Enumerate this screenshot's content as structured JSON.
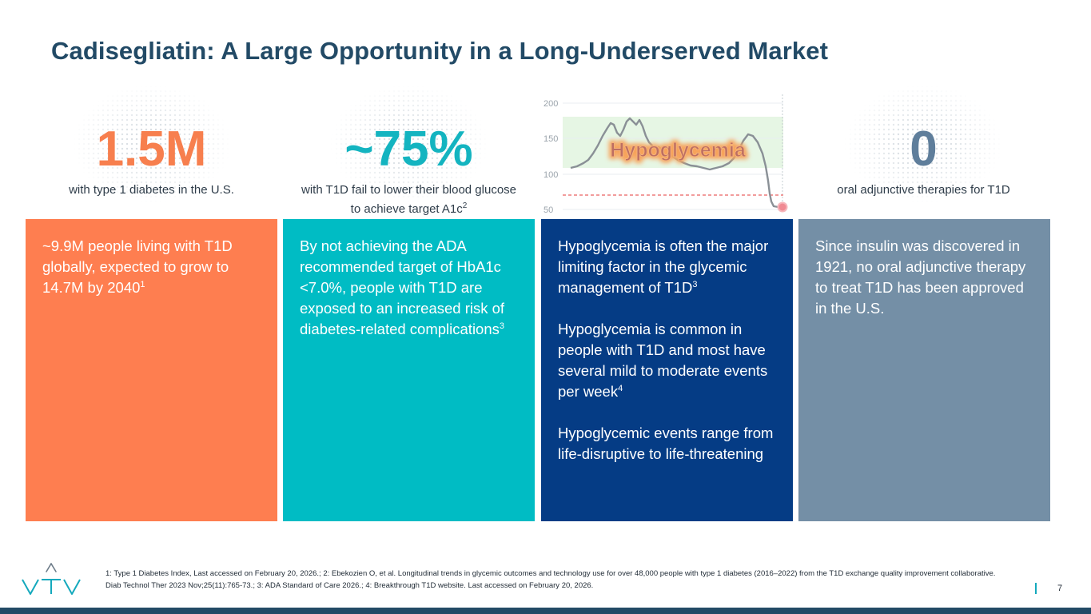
{
  "title": "Cadisegliatin: A Large Opportunity in a Long-Underserved Market",
  "colors": {
    "title": "#224a66",
    "orange": "#fe7e50",
    "teal": "#00bcc4",
    "navy": "#053c85",
    "slate": "#748fa6",
    "stat_orange": "#f77f4e",
    "stat_teal": "#14b4c0",
    "stat_slate": "#5f7e9b"
  },
  "stats": [
    {
      "value": "1.5M",
      "subtitle": "with type 1 diabetes in the U.S."
    },
    {
      "value": "~75%",
      "subtitle_line1": "with T1D fail to lower their blood glucose",
      "subtitle_line2": "to achieve target A1c",
      "subtitle_sup": "2"
    },
    {
      "value": "0",
      "subtitle": "oral adjunctive therapies for T1D"
    }
  ],
  "glucose_chart": {
    "label": "Hypoglycemia",
    "y_ticks": [
      "200",
      "150",
      "100",
      "50"
    ],
    "icon": "glucose-trace-chart"
  },
  "cards": [
    {
      "text": "~9.9M people living with T1D globally, expected to grow to 14.7M by 2040",
      "sup": "1"
    },
    {
      "text": "By not achieving the ADA recommended target of HbA1c <7.0%, people with T1D are exposed to an increased risk of diabetes-related complications",
      "sup": "3"
    },
    {
      "p1": "Hypoglycemia is often the major limiting factor in the glycemic management of T1D",
      "p1_sup": "3",
      "p2": "Hypoglycemia is common in people with T1D and most have several mild to moderate events per week",
      "p2_sup": "4",
      "p3": "Hypoglycemic events range from life-disruptive to life-threatening"
    },
    {
      "text": "Since insulin was discovered in 1921, no oral adjunctive therapy to treat T1D has been approved in the U.S."
    }
  ],
  "footnote": "1: Type 1 Diabetes Index, Last accessed on February 20, 2026.; 2: Ebekozien O, et al. Longitudinal trends in glycemic outcomes and technology use for over 48,000 people with type 1 diabetes (2016–2022) from the T1D exchange quality improvement collaborative. Diab Technol Ther 2023 Nov;25(11):765-73.; 3: ADA Standard of Care 2026.; 4: Breakthrough T1D website. Last accessed on February 20, 2026.",
  "page_number": "7",
  "logo": {
    "name": "vtv-logo-icon",
    "text": "VTV"
  }
}
